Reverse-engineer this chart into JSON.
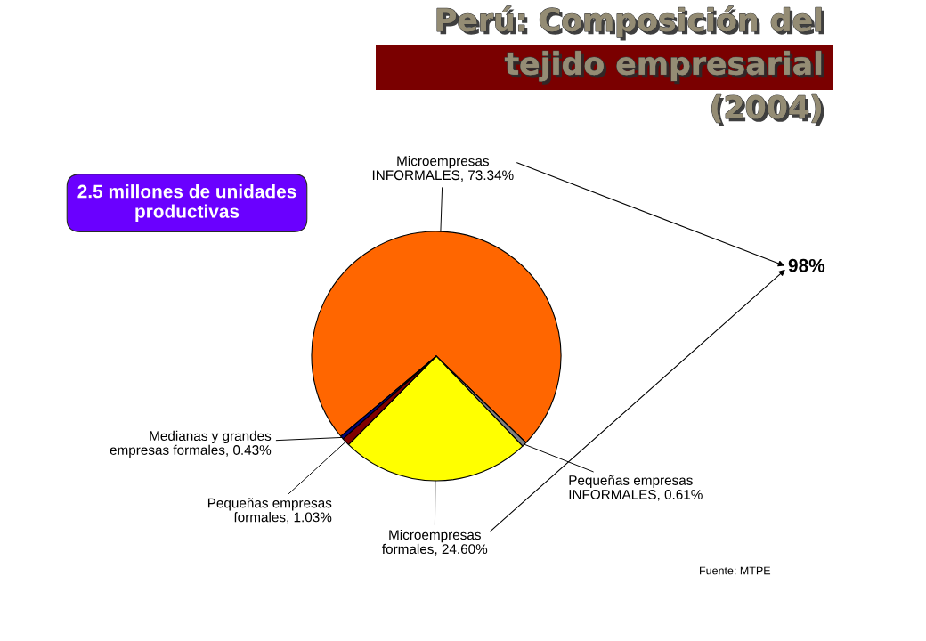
{
  "chart_data": {
    "type": "pie",
    "title": "Perú: Composición del tejido empresarial (2004)",
    "categories": [
      "Microempresas INFORMALES",
      "Pequeñas empresas INFORMALES",
      "Microempresas formales",
      "Pequeñas empresas formales",
      "Medianas y grandes empresas formales"
    ],
    "values": [
      73.34,
      0.61,
      24.6,
      1.03,
      0.43
    ],
    "colors": [
      "#ff6600",
      "#808080",
      "#ffff00",
      "#800000",
      "#000080"
    ],
    "value_labels": [
      "73.34%",
      "0.61%",
      "24.60%",
      "1.03%",
      "0.43%"
    ],
    "annotations": [
      "2.5 millones de unidades productivas",
      "98%",
      "Fuente: MTPE"
    ]
  }
}
